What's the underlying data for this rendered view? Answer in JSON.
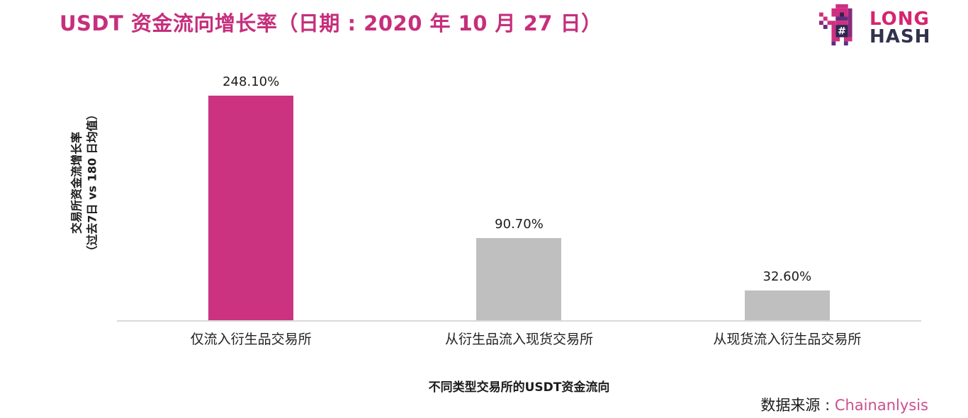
{
  "title": "USDT 资金流向增长率（日期 : 2020 年 10 月 27 日）",
  "logo": {
    "line1": "LONG",
    "line2": "HASH"
  },
  "chart_data": {
    "type": "bar",
    "title": "USDT 资金流向增长率（日期 : 2020 年 10 月 27 日）",
    "categories": [
      "仅流入衍生品交易所",
      "从衍生品流入现货交易所",
      "从现货流入衍生品交易所"
    ],
    "values": [
      248.1,
      90.7,
      32.6
    ],
    "value_labels": [
      "248.10%",
      "90.70%",
      "32.60%"
    ],
    "bar_colors": [
      "#cb3381",
      "#bfbfbf",
      "#bfbfbf"
    ],
    "xlabel": "不同类型交易所的USDT资金流向",
    "ylabel_line1": "交易所资金流增长率",
    "ylabel_line2": "（过去7日 vs 180 日均值）",
    "ylim": [
      0,
      260
    ],
    "grid": false,
    "legend": false
  },
  "source": {
    "label": "数据来源 : ",
    "value": "Chainanlysis"
  },
  "colors": {
    "title_magenta": "#c62f7d",
    "bar_pink": "#cb3381",
    "bar_gray": "#bfbfbf",
    "baseline_gray": "#d9d9d9",
    "logo_pink": "#d6246e",
    "logo_navy": "#32324e",
    "source_pink": "#cb4f8e"
  }
}
